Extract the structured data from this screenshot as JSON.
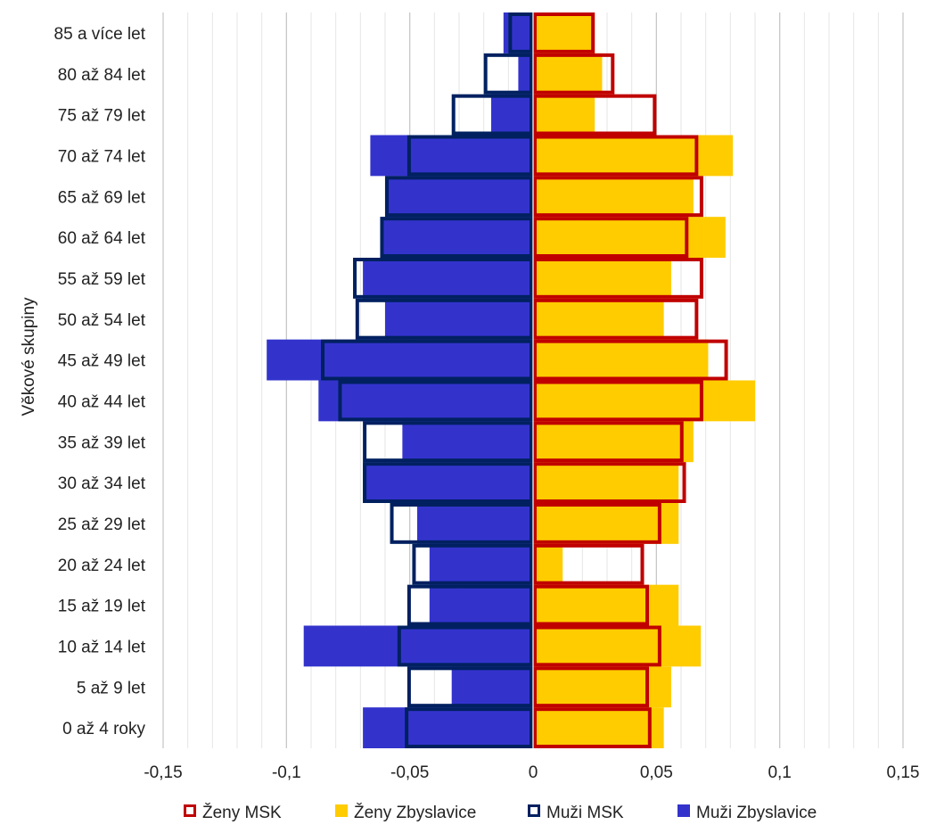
{
  "chart_data": {
    "type": "bar",
    "orientation": "horizontal",
    "ylabel": "Věkové skupiny",
    "xlabel": "",
    "xlim": [
      -0.15,
      0.15
    ],
    "x_ticks": [
      -0.15,
      -0.1,
      -0.05,
      0,
      0.05,
      0.1,
      0.15
    ],
    "x_tick_labels": [
      "-0,15",
      "-0,1",
      "-0,05",
      "0",
      "0,05",
      "0,1",
      "0,15"
    ],
    "grid": "vertical",
    "legend_position": "bottom",
    "categories": [
      "0 až 4 roky",
      "5 až 9 let",
      "10 až 14 let",
      "15 až 19 let",
      "20 až 24 let",
      "25 až 29 let",
      "30 až 34 let",
      "35 až 39 let",
      "40 až 44 let",
      "45 až 49 let",
      "50 až 54 let",
      "55 až 59 let",
      "60 až 64 let",
      "65 až 69 let",
      "70 až 74 let",
      "75 až 79 let",
      "80 až 84 let",
      "85 a více let"
    ],
    "series": [
      {
        "name": "Ženy MSK",
        "style": "outline",
        "color": "#c00000",
        "values": [
          0.048,
          0.047,
          0.052,
          0.047,
          0.045,
          0.052,
          0.062,
          0.061,
          0.069,
          0.079,
          0.067,
          0.069,
          0.063,
          0.069,
          0.067,
          0.05,
          0.033,
          0.025
        ]
      },
      {
        "name": "Ženy Zbyslavice",
        "style": "fill",
        "color": "#ffcc00",
        "values": [
          0.053,
          0.056,
          0.068,
          0.059,
          0.012,
          0.059,
          0.059,
          0.065,
          0.09,
          0.071,
          0.053,
          0.056,
          0.078,
          0.065,
          0.081,
          0.025,
          0.028,
          0.025
        ]
      },
      {
        "name": "Muži MSK",
        "style": "outline",
        "color": "#002060",
        "values": [
          -0.052,
          -0.051,
          -0.055,
          -0.051,
          -0.049,
          -0.058,
          -0.069,
          -0.069,
          -0.079,
          -0.086,
          -0.072,
          -0.073,
          -0.062,
          -0.06,
          -0.051,
          -0.033,
          -0.02,
          -0.01
        ]
      },
      {
        "name": "Muži Zbyslavice",
        "style": "fill",
        "color": "#3333cc",
        "values": [
          -0.069,
          -0.033,
          -0.093,
          -0.042,
          -0.042,
          -0.047,
          -0.069,
          -0.053,
          -0.087,
          -0.108,
          -0.06,
          -0.069,
          -0.062,
          -0.06,
          -0.066,
          -0.017,
          -0.006,
          -0.012
        ]
      }
    ]
  }
}
